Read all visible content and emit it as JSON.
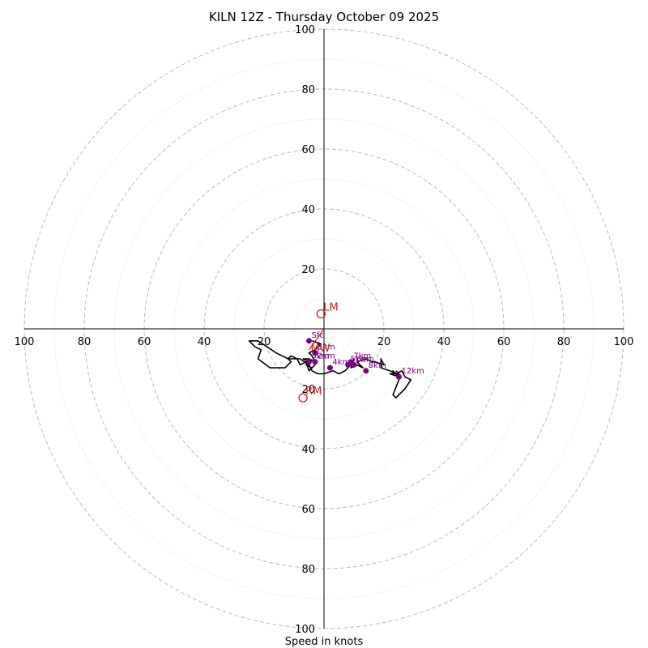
{
  "chart_data": {
    "type": "hodograph",
    "title": "KILN 12Z - Thursday October 09 2025",
    "xlabel": "Speed in knots",
    "units": "knots",
    "axis_range": [
      -100,
      100
    ],
    "rings_major": [
      20,
      40,
      60,
      80,
      100
    ],
    "rings_minor": [
      10,
      30,
      50,
      70,
      90
    ],
    "x_ticks": [
      {
        "value": -100,
        "label": "100"
      },
      {
        "value": -80,
        "label": "80"
      },
      {
        "value": -60,
        "label": "60"
      },
      {
        "value": -40,
        "label": "40"
      },
      {
        "value": -20,
        "label": "20"
      },
      {
        "value": 20,
        "label": "20"
      },
      {
        "value": 40,
        "label": "40"
      },
      {
        "value": 60,
        "label": "60"
      },
      {
        "value": 80,
        "label": "80"
      },
      {
        "value": 100,
        "label": "100"
      }
    ],
    "y_ticks": [
      {
        "value": 100,
        "label": "100"
      },
      {
        "value": 80,
        "label": "80"
      },
      {
        "value": 60,
        "label": "60"
      },
      {
        "value": 40,
        "label": "40"
      },
      {
        "value": 20,
        "label": "20"
      },
      {
        "value": -20,
        "label": "20"
      },
      {
        "value": -40,
        "label": "40"
      },
      {
        "value": -60,
        "label": "60"
      },
      {
        "value": -80,
        "label": "80"
      },
      {
        "value": -100,
        "label": "100"
      }
    ],
    "trace": [
      [
        -4,
        -4
      ],
      [
        -1,
        -5
      ],
      [
        -3,
        -7
      ],
      [
        -5,
        -8
      ],
      [
        -4,
        -9
      ],
      [
        -3,
        -11
      ],
      [
        -5,
        -10
      ],
      [
        -7,
        -10
      ],
      [
        -5,
        -11
      ],
      [
        -6,
        -12
      ],
      [
        -4,
        -13
      ],
      [
        -3,
        -12
      ],
      [
        -5,
        -14
      ],
      [
        -6,
        -11
      ],
      [
        -8,
        -12
      ],
      [
        -9,
        -10
      ],
      [
        -11,
        -9
      ],
      [
        -12,
        -10
      ],
      [
        -11,
        -11
      ],
      [
        -13,
        -13
      ],
      [
        -16,
        -13
      ],
      [
        -18,
        -13
      ],
      [
        -22,
        -10
      ],
      [
        -21,
        -7
      ],
      [
        -23,
        -6
      ],
      [
        -25,
        -4
      ],
      [
        -22,
        -4
      ],
      [
        -19,
        -6
      ],
      [
        -16,
        -8
      ],
      [
        -14,
        -9
      ],
      [
        -12,
        -10
      ],
      [
        -8,
        -10
      ],
      [
        -5,
        -12
      ],
      [
        -4,
        -14
      ],
      [
        -2,
        -15
      ],
      [
        0,
        -15
      ],
      [
        3,
        -14
      ],
      [
        5,
        -15
      ],
      [
        7,
        -14
      ],
      [
        9,
        -12
      ],
      [
        8,
        -13
      ],
      [
        10,
        -10
      ],
      [
        9,
        -13
      ],
      [
        11,
        -12
      ],
      [
        13,
        -13
      ],
      [
        11,
        -11
      ],
      [
        14,
        -10
      ],
      [
        16,
        -11
      ],
      [
        17,
        -11
      ],
      [
        20,
        -12
      ],
      [
        19,
        -10
      ],
      [
        19,
        -13
      ],
      [
        22,
        -14
      ],
      [
        24,
        -15
      ],
      [
        26,
        -14
      ],
      [
        27,
        -16
      ],
      [
        29,
        -17
      ],
      [
        27,
        -20
      ],
      [
        24,
        -23
      ],
      [
        23,
        -22
      ],
      [
        25,
        -17
      ],
      [
        24,
        -15
      ],
      [
        23,
        -14
      ],
      [
        25,
        -16
      ],
      [
        22,
        -15
      ],
      [
        25,
        -15
      ],
      [
        24,
        -14
      ]
    ],
    "heights": [
      {
        "label": "Sfc",
        "u": -5,
        "v": -4
      },
      {
        "label": "1km",
        "u": -3,
        "v": -8
      },
      {
        "label": "2km",
        "u": -3,
        "v": -11
      },
      {
        "label": "3km",
        "u": -5,
        "v": -11
      },
      {
        "label": "4km",
        "u": 2,
        "v": -13
      },
      {
        "label": "5km",
        "u": 8,
        "v": -12
      },
      {
        "label": "6km",
        "u": 10,
        "v": -12
      },
      {
        "label": "7km",
        "u": 9,
        "v": -11
      },
      {
        "label": "8km",
        "u": 14,
        "v": -14
      },
      {
        "label": "12km",
        "u": 25,
        "v": -16
      }
    ],
    "motion_markers": [
      {
        "label": "LM",
        "u": -1,
        "v": 5
      },
      {
        "label": "RM",
        "u": -7,
        "v": -23
      }
    ],
    "mean_wind_label": "MW",
    "mean_wind": {
      "u": -5,
      "v": -7
    },
    "colors": {
      "trace": "#000000",
      "height_points": "#800080",
      "motion_markers": "#cc1f1f",
      "rings": "#bbbbbb",
      "axes": "#000000"
    }
  }
}
